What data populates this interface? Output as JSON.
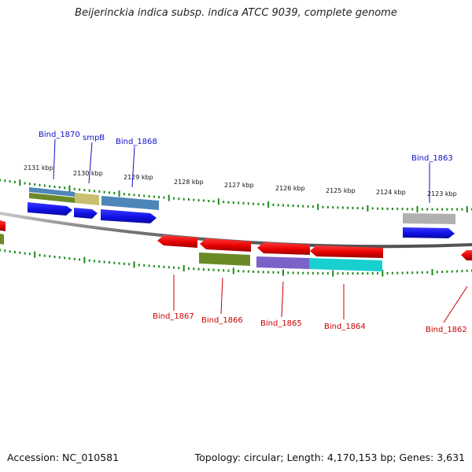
{
  "header": {
    "title": "Beijerinckia indica subsp. indica ATCC 9039, complete genome"
  },
  "footer": {
    "accession": "Accession: NC_010581",
    "summary": "Topology: circular; Length: 4,170,153 bp; Genes: 3,631"
  },
  "kbp_ticks": [
    "2131 kbp",
    "2130 kbp",
    "2129 kbp",
    "2128 kbp",
    "2127 kbp",
    "2126 kbp",
    "2125 kbp",
    "2124 kbp",
    "2123 kbp"
  ],
  "gene_labels_top": [
    "Bind_1870",
    "smpB",
    "Bind_1868",
    "Bind_1863"
  ],
  "gene_labels_bottom": [
    "Bind_1867",
    "Bind_1866",
    "Bind_1865",
    "Bind_1864",
    "Bind_1862"
  ],
  "colors": {
    "forward_gene": "#1010e6",
    "reverse_gene": "#e60000",
    "tick": "#1a8a1a",
    "backbone": "#808080",
    "top_label": "#1010c8",
    "bottom_label": "#c80000",
    "cog_blue": "#4f86b8",
    "cog_olive": "#6a8a28",
    "cog_khaki": "#c8c070",
    "cog_gray": "#b0b0b0",
    "cog_purple": "#7a62c8",
    "cog_cyan": "#18d0d0"
  }
}
